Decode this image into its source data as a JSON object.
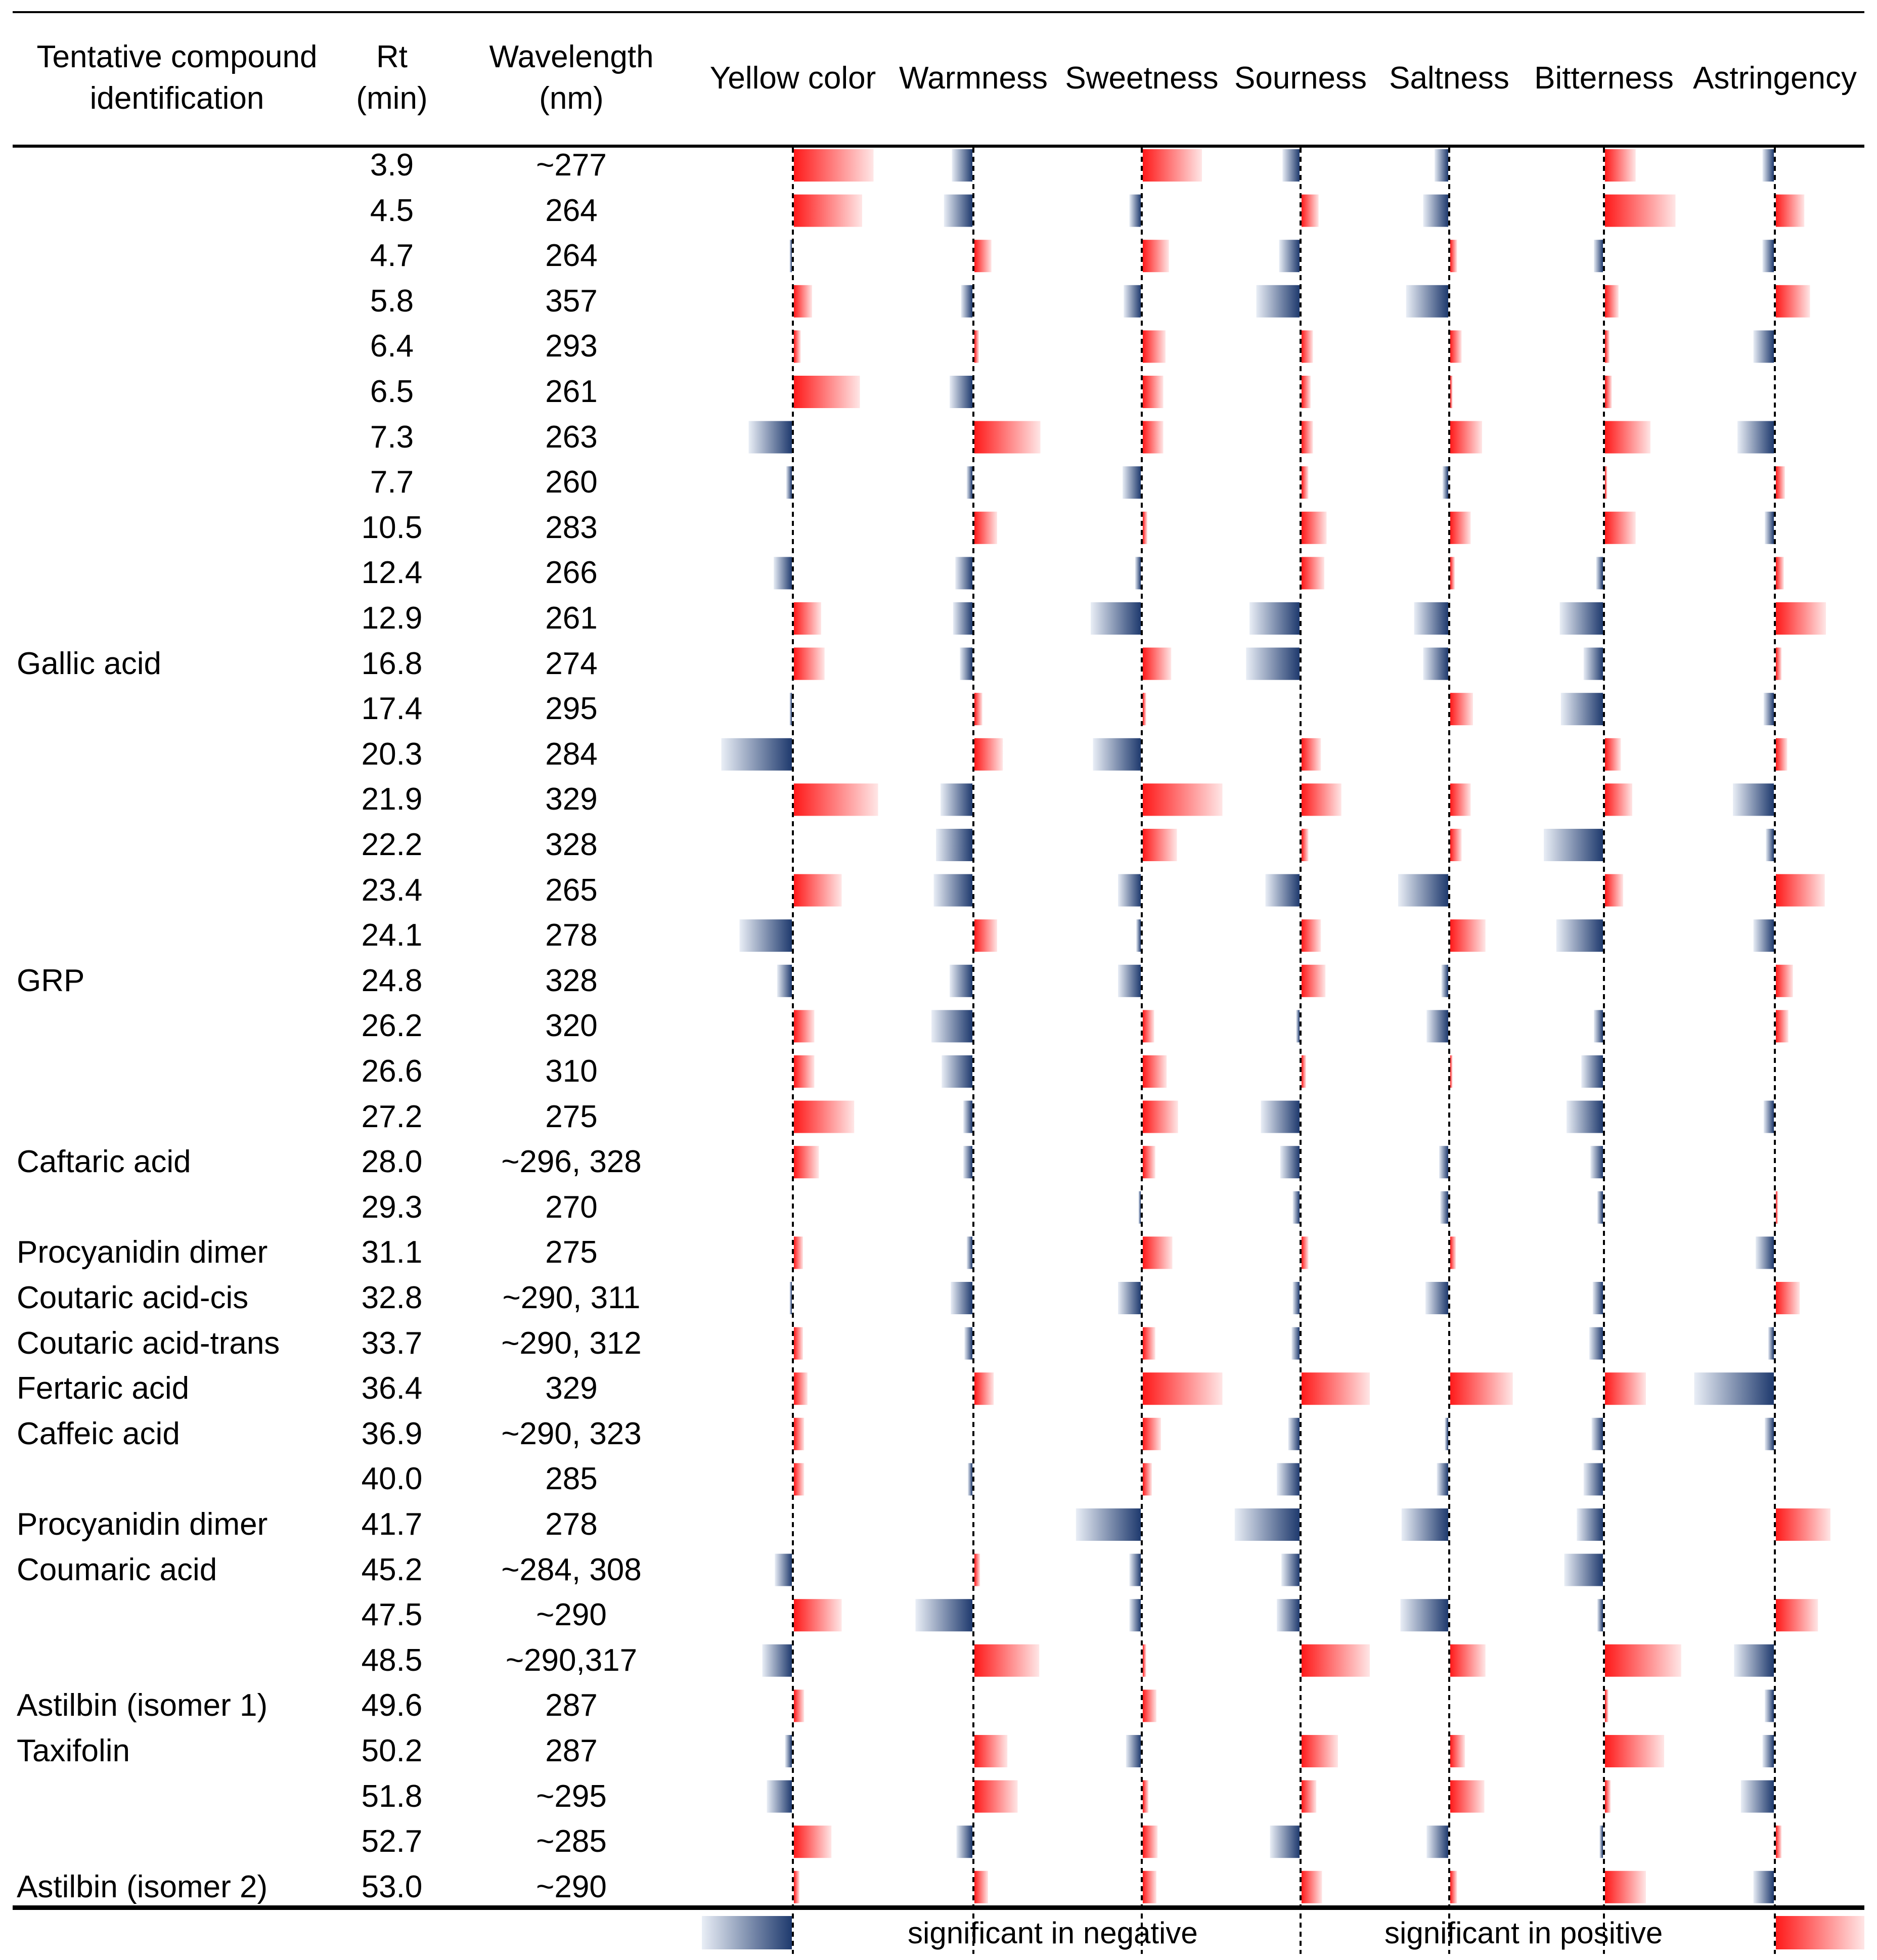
{
  "chart_data": {
    "type": "table",
    "title": "",
    "columns": {
      "compound": "Tentative compound identification",
      "rt": "Rt (min)",
      "wavelength": "Wavelength (nm)"
    },
    "header": {
      "compound_line1": "Tentative compound",
      "compound_line2": "identification",
      "rt_line1": "Rt",
      "rt_line2": "(min)",
      "wl_line1": "Wavelength",
      "wl_line2": "(nm)"
    },
    "attributes": [
      "Yellow color",
      "Warmness",
      "Sweetness",
      "Sourness",
      "Saltness",
      "Bitterness",
      "Astringency"
    ],
    "value_scale": "relative bar length, negative = blue (left), positive = red (right)",
    "colors": {
      "negative": "#1f3a6e",
      "positive": "#ff1a1a"
    },
    "rows": [
      {
        "compound": "",
        "rt": "3.9",
        "wl": "~277",
        "values": [
          0.7,
          -0.18,
          0.52,
          -0.15,
          -0.12,
          0.27,
          -0.1
        ]
      },
      {
        "compound": "",
        "rt": "4.5",
        "wl": "264",
        "values": [
          0.6,
          -0.25,
          -0.1,
          0.15,
          -0.22,
          0.62,
          0.25
        ]
      },
      {
        "compound": "",
        "rt": "4.7",
        "wl": "264",
        "values": [
          -0.02,
          0.15,
          0.23,
          -0.18,
          0.06,
          -0.08,
          -0.1
        ]
      },
      {
        "compound": "",
        "rt": "5.8",
        "wl": "357",
        "values": [
          0.16,
          -0.1,
          -0.15,
          -0.38,
          -0.37,
          0.12,
          0.3
        ]
      },
      {
        "compound": "",
        "rt": "6.4",
        "wl": "293",
        "values": [
          0.06,
          0.04,
          0.2,
          0.1,
          0.1,
          0.04,
          -0.18
        ]
      },
      {
        "compound": "",
        "rt": "6.5",
        "wl": "261",
        "values": [
          0.58,
          -0.2,
          0.18,
          0.08,
          0.02,
          0.06,
          0.0
        ]
      },
      {
        "compound": "",
        "rt": "7.3",
        "wl": "263",
        "values": [
          -0.38,
          0.58,
          0.18,
          0.1,
          0.28,
          0.4,
          -0.32
        ]
      },
      {
        "compound": "",
        "rt": "7.7",
        "wl": "260",
        "values": [
          -0.05,
          -0.05,
          -0.16,
          0.06,
          -0.05,
          0.02,
          0.08
        ]
      },
      {
        "compound": "",
        "rt": "10.5",
        "wl": "283",
        "values": [
          0.0,
          0.2,
          0.04,
          0.22,
          0.18,
          0.27,
          -0.08
        ]
      },
      {
        "compound": "",
        "rt": "12.4",
        "wl": "266",
        "values": [
          -0.16,
          -0.15,
          -0.05,
          0.2,
          0.04,
          -0.06,
          0.07
        ]
      },
      {
        "compound": "",
        "rt": "12.9",
        "wl": "261",
        "values": [
          0.24,
          -0.17,
          -0.44,
          -0.44,
          -0.3,
          -0.38,
          0.44
        ]
      },
      {
        "compound": "Gallic acid",
        "rt": "16.8",
        "wl": "274",
        "values": [
          0.27,
          -0.11,
          0.25,
          -0.47,
          -0.22,
          -0.17,
          0.05
        ]
      },
      {
        "compound": "",
        "rt": "17.4",
        "wl": "295",
        "values": [
          -0.02,
          0.07,
          0.03,
          0.0,
          0.2,
          -0.37,
          -0.09
        ]
      },
      {
        "compound": "",
        "rt": "20.3",
        "wl": "284",
        "values": [
          -0.62,
          0.25,
          -0.42,
          0.17,
          0.0,
          0.14,
          0.1
        ]
      },
      {
        "compound": "",
        "rt": "21.9",
        "wl": "329",
        "values": [
          0.74,
          -0.28,
          0.7,
          0.35,
          0.18,
          0.24,
          -0.36
        ]
      },
      {
        "compound": "",
        "rt": "22.2",
        "wl": "328",
        "values": [
          0.0,
          -0.32,
          0.3,
          0.06,
          0.1,
          -0.52,
          -0.07
        ]
      },
      {
        "compound": "",
        "rt": "23.4",
        "wl": "265",
        "values": [
          0.42,
          -0.34,
          -0.2,
          -0.3,
          -0.44,
          0.16,
          0.43
        ]
      },
      {
        "compound": "",
        "rt": "24.1",
        "wl": "278",
        "values": [
          -0.46,
          0.2,
          -0.04,
          0.17,
          0.31,
          -0.41,
          -0.18
        ]
      },
      {
        "compound": "GRP",
        "rt": "24.8",
        "wl": "328",
        "values": [
          -0.13,
          -0.2,
          -0.2,
          0.21,
          -0.06,
          0.0,
          0.15
        ]
      },
      {
        "compound": "",
        "rt": "26.2",
        "wl": "320",
        "values": [
          0.18,
          -0.36,
          0.1,
          -0.03,
          -0.19,
          -0.08,
          0.11
        ]
      },
      {
        "compound": "",
        "rt": "26.6",
        "wl": "310",
        "values": [
          0.18,
          -0.27,
          0.21,
          0.04,
          0.02,
          -0.19,
          0.0
        ]
      },
      {
        "compound": "",
        "rt": "27.2",
        "wl": "275",
        "values": [
          0.53,
          -0.08,
          0.31,
          -0.34,
          0.0,
          -0.32,
          -0.09
        ]
      },
      {
        "compound": "Caftaric acid",
        "rt": "28.0",
        "wl": "~296, 328",
        "values": [
          0.22,
          -0.08,
          0.11,
          -0.17,
          -0.08,
          -0.11,
          0.0
        ]
      },
      {
        "compound": "",
        "rt": "29.3",
        "wl": "270",
        "values": [
          0.0,
          0.0,
          -0.02,
          -0.06,
          -0.07,
          -0.05,
          0.02
        ]
      },
      {
        "compound": "Procyanidin dimer",
        "rt": "31.1",
        "wl": "275",
        "values": [
          0.08,
          -0.05,
          0.26,
          0.06,
          0.05,
          0.0,
          -0.16
        ]
      },
      {
        "compound": "Coutaric acid-cis",
        "rt": "32.8",
        "wl": "~290, 311",
        "values": [
          -0.02,
          -0.19,
          -0.2,
          -0.06,
          -0.2,
          -0.09,
          0.21
        ]
      },
      {
        "compound": "Coutaric acid-trans",
        "rt": "33.7",
        "wl": "~290, 312",
        "values": [
          0.08,
          -0.07,
          0.11,
          -0.07,
          0.0,
          -0.12,
          -0.05
        ]
      },
      {
        "compound": "Fertaric acid",
        "rt": "36.4",
        "wl": "329",
        "values": [
          0.12,
          0.17,
          0.7,
          0.6,
          0.55,
          0.36,
          -0.7
        ]
      },
      {
        "compound": "Caffeic acid",
        "rt": "36.9",
        "wl": "~290, 323",
        "values": [
          0.09,
          0.0,
          0.16,
          -0.1,
          -0.03,
          -0.1,
          -0.08
        ]
      },
      {
        "compound": "",
        "rt": "40.0",
        "wl": "285",
        "values": [
          0.09,
          -0.04,
          0.08,
          -0.2,
          -0.1,
          -0.17,
          0.0
        ]
      },
      {
        "compound": "Procyanidin dimer",
        "rt": "41.7",
        "wl": "278",
        "values": [
          0.0,
          0.0,
          -0.57,
          -0.57,
          -0.41,
          -0.23,
          0.48
        ]
      },
      {
        "compound": "Coumaric acid",
        "rt": "45.2",
        "wl": "~284, 308",
        "values": [
          -0.15,
          0.05,
          -0.1,
          -0.16,
          0.0,
          -0.34,
          0.0
        ]
      },
      {
        "compound": "",
        "rt": "47.5",
        "wl": "~290",
        "values": [
          0.42,
          -0.5,
          -0.1,
          -0.2,
          -0.42,
          -0.05,
          0.37
        ]
      },
      {
        "compound": "",
        "rt": "48.5",
        "wl": "~290,317",
        "values": [
          -0.26,
          0.57,
          0.03,
          0.6,
          0.31,
          0.67,
          -0.35
        ]
      },
      {
        "compound": "Astilbin (isomer 1)",
        "rt": "49.6",
        "wl": "287",
        "values": [
          0.09,
          0.0,
          0.12,
          0.0,
          0.0,
          0.03,
          -0.08
        ]
      },
      {
        "compound": "Taxifolin",
        "rt": "50.2",
        "wl": "287",
        "values": [
          -0.06,
          0.29,
          -0.13,
          0.32,
          0.13,
          0.52,
          -0.1
        ]
      },
      {
        "compound": "",
        "rt": "51.8",
        "wl": "~295",
        "values": [
          -0.22,
          0.38,
          0.05,
          0.13,
          0.3,
          0.05,
          -0.29
        ]
      },
      {
        "compound": "",
        "rt": "52.7",
        "wl": "~285",
        "values": [
          0.33,
          -0.14,
          0.13,
          -0.26,
          -0.19,
          -0.03,
          0.05
        ]
      },
      {
        "compound": "Astilbin (isomer 2)",
        "rt": "53.0",
        "wl": "~290",
        "values": [
          0.05,
          0.12,
          0.12,
          0.18,
          0.06,
          0.36,
          -0.18
        ]
      }
    ],
    "legend": {
      "negative_label": "significant in negative",
      "positive_label": "significant in positive"
    }
  }
}
